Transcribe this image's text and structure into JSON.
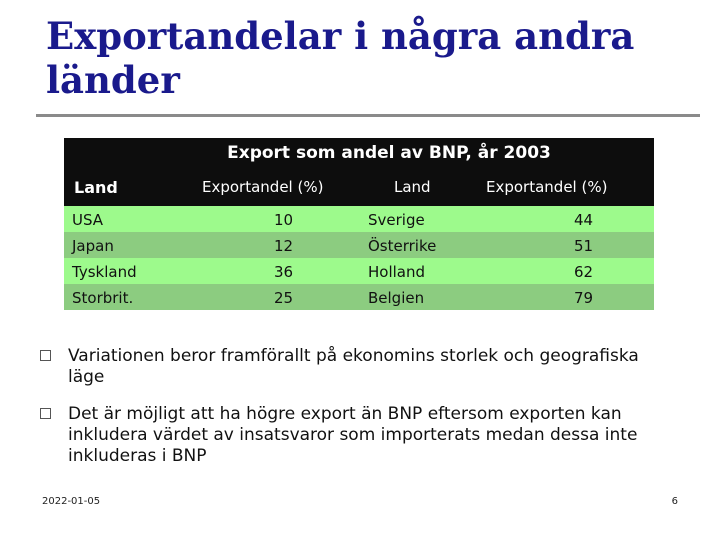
{
  "slide": {
    "title_line1": "Exportandelar i några andra",
    "title_line2": "länder",
    "date": "2022-01-05",
    "page_number": "6"
  },
  "table": {
    "caption": "Export som andel av BNP, år 2003",
    "headers": [
      "Land",
      "Exportandel (%)",
      "Land",
      "Exportandel (%)"
    ],
    "rows": [
      [
        "USA",
        "10",
        "Sverige",
        "44"
      ],
      [
        "Japan",
        "12",
        "Österrike",
        "51"
      ],
      [
        "Tyskland",
        "36",
        "Holland",
        "62"
      ],
      [
        "Storbrit.",
        "25",
        "Belgien",
        "79"
      ]
    ]
  },
  "bullets": [
    "Variationen beror framförallt på ekonomins storlek och geografiska läge",
    "Det är möjligt att ha högre export än BNP eftersom exporten kan inkludera värdet av insatsvaror som importerats medan dessa inte inkluderas i BNP"
  ],
  "colors": {
    "title": "#1a1a8c",
    "header_bg": "#0d0d0d",
    "row_light": "#9dfa8c",
    "row_dark": "#8ccc80"
  }
}
